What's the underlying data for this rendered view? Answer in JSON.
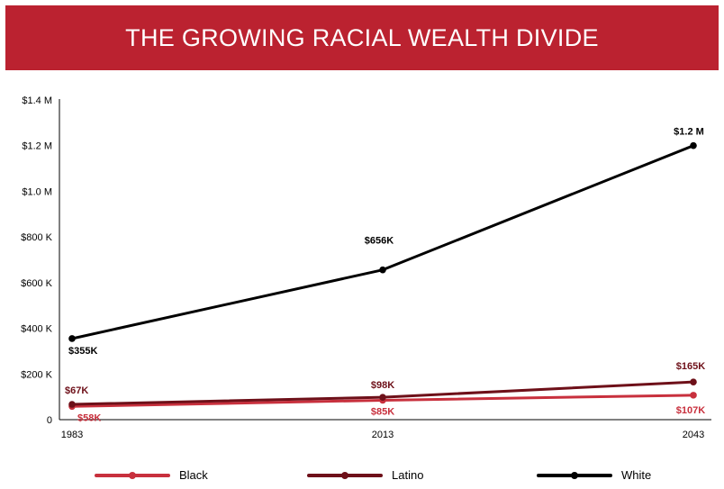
{
  "title": "THE GROWING RACIAL WEALTH DIVIDE",
  "colors": {
    "banner": "#bb2230",
    "Black": "#c8303d",
    "Latino": "#6e1019",
    "White": "#000000"
  },
  "chart_data": {
    "type": "line",
    "title": "THE GROWING RACIAL WEALTH DIVIDE",
    "x": [
      1983,
      2013,
      2043
    ],
    "x_tick_labels": [
      "1983",
      "2013",
      "2043"
    ],
    "ylim": [
      0,
      1400000
    ],
    "y_ticks": [
      0,
      200000,
      400000,
      600000,
      800000,
      1000000,
      1200000,
      1400000
    ],
    "y_tick_labels": [
      "0",
      "$200 K",
      "$400 K",
      "$600 K",
      "$800 K",
      "$1.0 M",
      "$1.2 M",
      "$1.4 M"
    ],
    "grid": false,
    "legend_position": "bottom",
    "series": [
      {
        "name": "Black",
        "color": "#c8303d",
        "values": [
          58000,
          85000,
          107000
        ],
        "labels": [
          "$58K",
          "$85K",
          "$107K"
        ]
      },
      {
        "name": "Latino",
        "color": "#6e1019",
        "values": [
          67000,
          98000,
          165000
        ],
        "labels": [
          "$67K",
          "$98K",
          "$165K"
        ]
      },
      {
        "name": "White",
        "color": "#000000",
        "values": [
          355000,
          656000,
          1200000
        ],
        "labels": [
          "$355K",
          "$656K",
          "$1.2 M"
        ]
      }
    ]
  }
}
